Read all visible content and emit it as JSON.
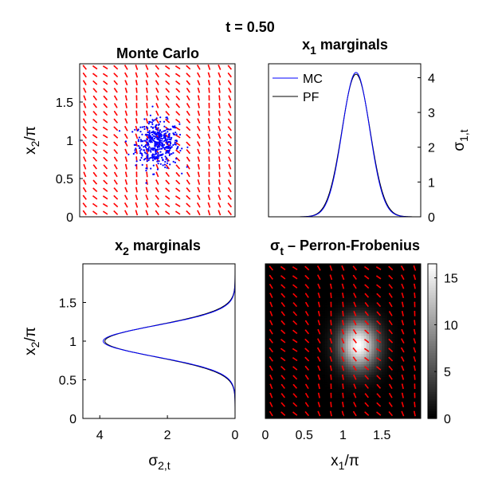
{
  "figure_title": "t = 0.50",
  "chart_data": [
    {
      "id": "monte-carlo",
      "type": "scatter",
      "title": "Monte Carlo",
      "xlim": [
        0,
        2
      ],
      "ylim": [
        0,
        2
      ],
      "ylabel": "x_2/π",
      "yticks": [
        0,
        0.5,
        1,
        1.5
      ],
      "ytick_labels": [
        "0",
        "0.5",
        "1",
        "1.5"
      ],
      "xticks_shown": false,
      "point_cloud": {
        "center": [
          1.0,
          0.95
        ],
        "spread": [
          0.14,
          0.15
        ],
        "count": 420,
        "color": "#0000ff"
      },
      "vector_field": {
        "color": "#ff0000",
        "columns": 15,
        "rows": 20
      }
    },
    {
      "id": "x1-marginals",
      "type": "line",
      "title": "x_1 marginals",
      "xlim": [
        0,
        2
      ],
      "ylim": [
        0,
        4.4
      ],
      "ylabel": "σ_{1,t}",
      "ylabel_side": "right",
      "yticks": [
        0,
        1,
        2,
        3,
        4
      ],
      "xticks_shown": false,
      "legend": {
        "placement": "top-left",
        "entries": [
          "MC",
          "PF"
        ]
      },
      "series": [
        {
          "name": "MC",
          "color": "#0000ff",
          "peak": 4.15,
          "mean": 1.15,
          "sd": 0.18
        },
        {
          "name": "PF",
          "color": "#000000",
          "peak": 4.1,
          "mean": 1.15,
          "sd": 0.185
        }
      ]
    },
    {
      "id": "x2-marginals",
      "type": "line",
      "title": "x_2 marginals",
      "xlim": [
        4.5,
        0
      ],
      "ylim": [
        0,
        2
      ],
      "xlabel": "σ_{2,t}",
      "ylabel": "x_2/π",
      "xticks": [
        4,
        2,
        0
      ],
      "yticks": [
        0,
        0.5,
        1,
        1.5
      ],
      "ytick_labels": [
        "0",
        "0.5",
        "1",
        "1.5"
      ],
      "series": [
        {
          "name": "MC",
          "color": "#0000ff",
          "peak": 3.9,
          "mean": 1.0,
          "sd": 0.2
        },
        {
          "name": "PF",
          "color": "#000000",
          "peak": 3.85,
          "mean": 1.0,
          "sd": 0.205
        }
      ]
    },
    {
      "id": "perron-frobenius",
      "type": "heatmap",
      "title": "σ_t – Perron-Frobenius",
      "xlim": [
        0,
        2
      ],
      "ylim": [
        0,
        2
      ],
      "xlabel": "x_1/π",
      "xticks": [
        0,
        0.5,
        1,
        1.5
      ],
      "xtick_labels": [
        "0",
        "0.5",
        "1",
        "1.5"
      ],
      "yticks_shown": false,
      "density": {
        "center": [
          1.2,
          0.95
        ],
        "spread": [
          0.17,
          0.22
        ],
        "peak": 16.5
      },
      "vector_field": {
        "color": "#ff0000",
        "columns": 13,
        "rows": 17
      },
      "colorbar": {
        "ticks": [
          0,
          5,
          10,
          15
        ],
        "range": [
          0,
          16.5
        ],
        "colormap": "gray"
      }
    }
  ]
}
